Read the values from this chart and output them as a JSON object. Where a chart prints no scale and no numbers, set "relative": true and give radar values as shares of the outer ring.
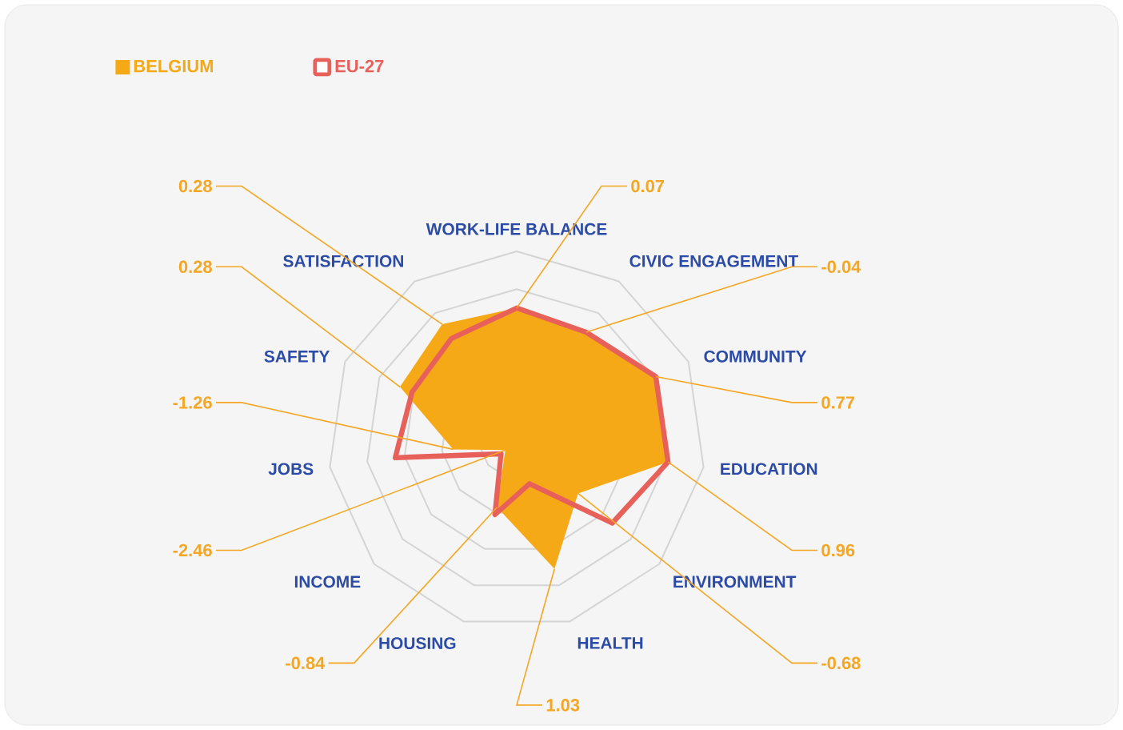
{
  "chart_data": {
    "type": "radar",
    "relative": true,
    "grid": true,
    "legend": "top left",
    "categories": [
      "WORK-LIFE BALANCE",
      "CIVIC ENGAGEMENT",
      "COMMUNITY",
      "EDUCATION",
      "ENVIRONMENT",
      "HEALTH",
      "HOUSING",
      "INCOME",
      "JOBS",
      "SAFETY",
      "SATISFACTION"
    ],
    "series": [
      {
        "name": "BELGIUM",
        "color": "#f6a917",
        "values": [
          0.7,
          0.68,
          0.81,
          0.81,
          0.43,
          0.71,
          0.37,
          0.08,
          0.34,
          0.68,
          0.73
        ]
      },
      {
        "name": "EU-27",
        "color": "#e8605a",
        "values": [
          0.7,
          0.68,
          0.81,
          0.81,
          0.67,
          0.24,
          0.41,
          0.11,
          0.65,
          0.61,
          0.64
        ]
      }
    ],
    "annotations": [
      "0.07",
      "-0.04",
      "0.77",
      "0.96",
      "-0.68",
      "1.03",
      "-0.84",
      "-2.46",
      "-1.26",
      "0.28",
      "0.28"
    ]
  }
}
